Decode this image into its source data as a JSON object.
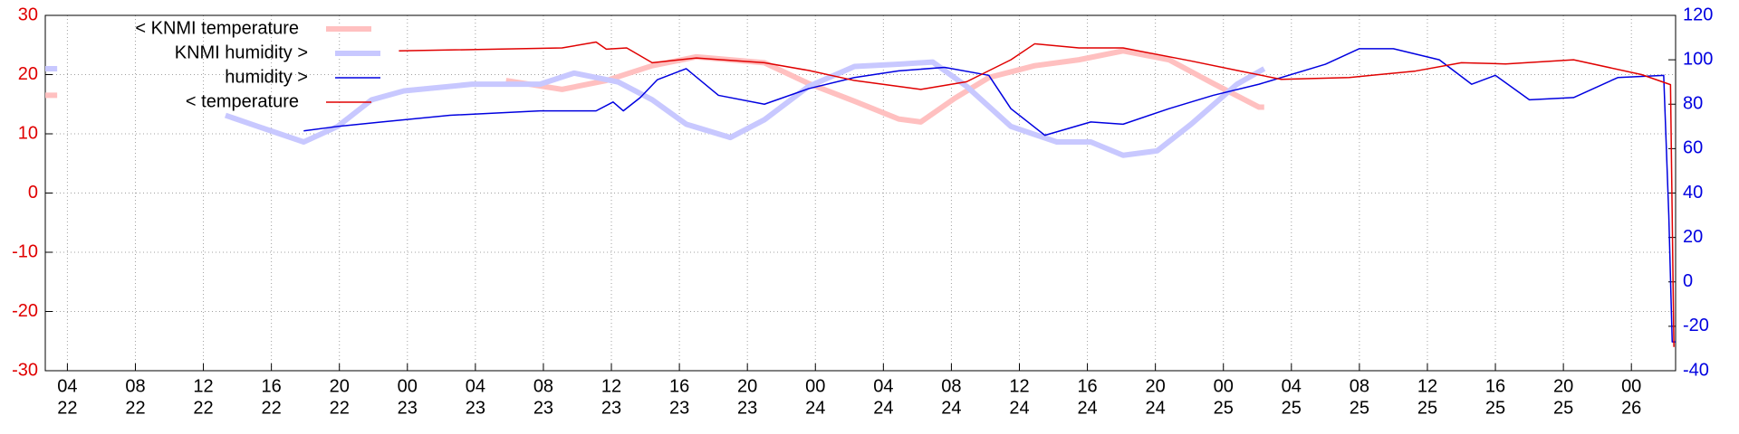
{
  "chart_data": {
    "type": "line",
    "grid": true,
    "xlim": [
      2.7,
      98.6
    ],
    "xticks": [
      {
        "value": 4,
        "label": "04",
        "sublabel": "22"
      },
      {
        "value": 8,
        "label": "08",
        "sublabel": "22"
      },
      {
        "value": 12,
        "label": "12",
        "sublabel": "22"
      },
      {
        "value": 16,
        "label": "16",
        "sublabel": "22"
      },
      {
        "value": 20,
        "label": "20",
        "sublabel": "22"
      },
      {
        "value": 24,
        "label": "00",
        "sublabel": "23"
      },
      {
        "value": 28,
        "label": "04",
        "sublabel": "23"
      },
      {
        "value": 32,
        "label": "08",
        "sublabel": "23"
      },
      {
        "value": 36,
        "label": "12",
        "sublabel": "23"
      },
      {
        "value": 40,
        "label": "16",
        "sublabel": "23"
      },
      {
        "value": 44,
        "label": "20",
        "sublabel": "23"
      },
      {
        "value": 48,
        "label": "00",
        "sublabel": "24"
      },
      {
        "value": 52,
        "label": "04",
        "sublabel": "24"
      },
      {
        "value": 56,
        "label": "08",
        "sublabel": "24"
      },
      {
        "value": 60,
        "label": "12",
        "sublabel": "24"
      },
      {
        "value": 64,
        "label": "16",
        "sublabel": "24"
      },
      {
        "value": 68,
        "label": "20",
        "sublabel": "24"
      },
      {
        "value": 72,
        "label": "00",
        "sublabel": "25"
      },
      {
        "value": 76,
        "label": "04",
        "sublabel": "25"
      },
      {
        "value": 80,
        "label": "08",
        "sublabel": "25"
      },
      {
        "value": 84,
        "label": "12",
        "sublabel": "25"
      },
      {
        "value": 88,
        "label": "16",
        "sublabel": "25"
      },
      {
        "value": 92,
        "label": "20",
        "sublabel": "25"
      },
      {
        "value": 96,
        "label": "00",
        "sublabel": "26"
      }
    ],
    "ylim": [
      -30,
      30
    ],
    "yticks": [
      -30,
      -20,
      -10,
      0,
      10,
      20,
      30
    ],
    "y2lim": [
      -40,
      120
    ],
    "y2ticks": [
      -40,
      -20,
      0,
      20,
      40,
      60,
      80,
      100,
      120
    ],
    "series": [
      {
        "name": "< KNMI temperature",
        "color": "#ffc0c0",
        "width": 6,
        "x": [
          2.7,
          3.4,
          23.5,
          29.8,
          33.1,
          35.7,
          38.4,
          41.0,
          45.0,
          47.6,
          50.3,
          52.9,
          54.2,
          56.2,
          58.2,
          60.9,
          63.5,
          66.1,
          68.8,
          71.4,
          74.1,
          74.4
        ],
        "values": [
          16.5,
          16.5,
          null,
          19,
          17.5,
          19,
          21.5,
          23,
          22,
          18.5,
          15.5,
          12.5,
          12,
          16,
          19.5,
          21.5,
          22.5,
          24,
          22.5,
          18.5,
          14.5,
          14.5
        ]
      },
      {
        "name": "KNMI humidity >",
        "color": "#c8c8ff",
        "width": 6,
        "axis": "y2",
        "x": [
          2.7,
          3.4,
          12.6,
          13.3,
          15.2,
          17.9,
          19.9,
          21.9,
          23.8,
          27.8,
          31.8,
          33.8,
          36.4,
          38.4,
          40.4,
          43.0,
          45.0,
          47.6,
          50.3,
          52.9,
          54.9,
          56.9,
          59.5,
          62.2,
          64.2,
          66.1,
          68.1,
          70.1,
          72.8,
          74.4
        ],
        "values": [
          96,
          96,
          null,
          75,
          70,
          63,
          70,
          82,
          86,
          89,
          89,
          94,
          90,
          82,
          71,
          65,
          73,
          88,
          97,
          98,
          99,
          88,
          70,
          63,
          63,
          57,
          59,
          71,
          89,
          96
        ]
      },
      {
        "name": "humidity >",
        "color": "#0000e0",
        "width": 1.5,
        "axis": "y2",
        "x": [
          17.9,
          19.9,
          22.5,
          26.5,
          31.8,
          35.1,
          36.1,
          36.7,
          37.7,
          38.7,
          40.4,
          42.3,
          45.0,
          47.6,
          50.3,
          52.9,
          55.6,
          58.2,
          59.5,
          61.5,
          64.2,
          66.1,
          68.8,
          71.4,
          74.1,
          78.0,
          80.0,
          82.0,
          84.7,
          86.6,
          88.0,
          90.0,
          92.6,
          95.2,
          97.9,
          98.2,
          98.4,
          98.6
        ],
        "values": [
          68,
          70,
          72,
          75,
          77,
          77,
          81,
          77,
          83,
          91,
          96,
          84,
          80,
          87,
          92,
          95,
          96.6,
          93,
          78,
          66,
          72,
          71,
          78,
          84,
          89,
          98,
          105,
          105,
          100,
          89,
          93,
          82,
          83,
          92,
          93,
          30,
          -27,
          -27
        ]
      },
      {
        "name": "< temperature",
        "color": "#e00000",
        "width": 1.5,
        "x": [
          23.5,
          33.1,
          35.1,
          35.7,
          36.9,
          38.4,
          41.0,
          45.0,
          47.6,
          50.3,
          54.2,
          56.9,
          59.5,
          60.9,
          63.5,
          66.1,
          70.1,
          72.8,
          75.4,
          79.4,
          83.3,
          86.0,
          88.6,
          92.6,
          96.6,
          98.3,
          98.5
        ],
        "values": [
          24,
          24.5,
          25.5,
          24.3,
          24.5,
          22,
          22.8,
          22,
          20.7,
          19,
          17.5,
          18.8,
          22.5,
          25.2,
          24.5,
          24.5,
          22.3,
          20.7,
          19.2,
          19.5,
          20.6,
          22,
          21.8,
          22.5,
          20,
          18.3,
          -26
        ]
      }
    ]
  }
}
